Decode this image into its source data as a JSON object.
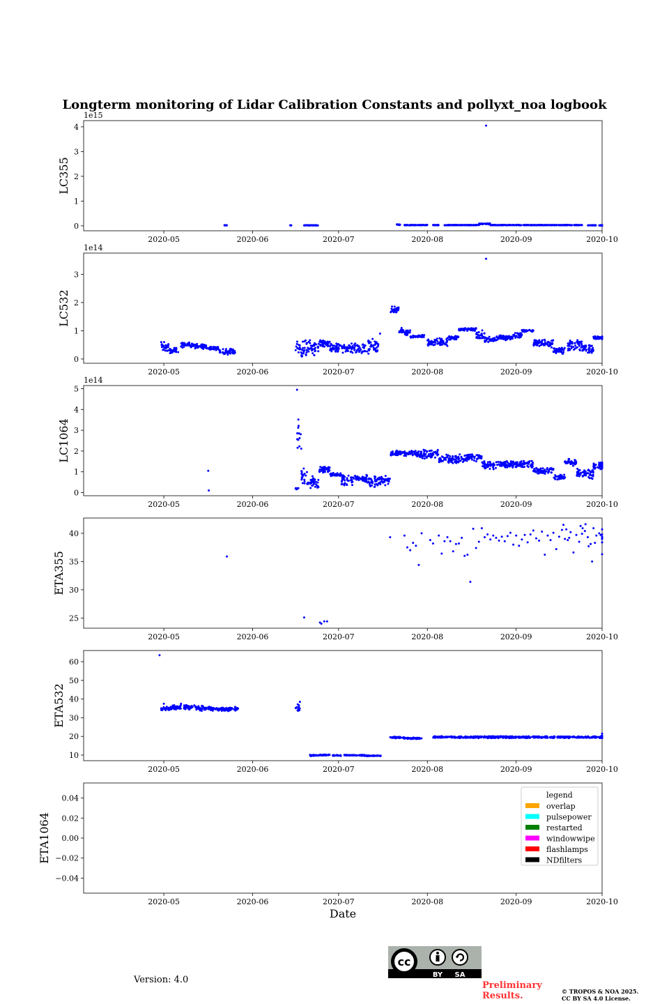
{
  "title": "Longterm monitoring of Lidar Calibration Constants and pollyxt_noa logbook",
  "x_axis": {
    "label": "Date",
    "ticks": [
      "2020-05",
      "2020-06",
      "2020-07",
      "2020-08",
      "2020-09",
      "2020-10"
    ],
    "tick_days": [
      30,
      61,
      91,
      122,
      153,
      183
    ],
    "range_days": [
      2,
      183
    ]
  },
  "version_text": "Version: 4.0",
  "preliminary_text": [
    "Preliminary",
    "Results."
  ],
  "copyright_text": [
    "© TROPOS & NOA 2025.",
    "CC BY SA 4.0 License."
  ],
  "cc_badge": {
    "labels": [
      "cc",
      "BY",
      "SA"
    ]
  },
  "colors": {
    "points": "#0000ff"
  },
  "chart_data": [
    {
      "type": "scatter",
      "ylabel": "LC355",
      "exponent": "1e15",
      "ylim": [
        -0.2,
        4.25
      ],
      "yticks": [
        0,
        1,
        2,
        3,
        4
      ],
      "ytick_labels": [
        "0",
        "1",
        "2",
        "3",
        "4"
      ],
      "segments": [
        [
          51,
          52,
          0.02,
          0.01
        ],
        [
          74,
          74.5,
          0.02,
          0.01
        ],
        [
          79,
          84,
          0.02,
          0.01
        ],
        [
          111,
          112.5,
          0.05,
          0.02
        ],
        [
          114,
          122,
          0.03,
          0.01
        ],
        [
          124,
          126,
          0.03,
          0.01
        ],
        [
          128,
          140,
          0.03,
          0.01
        ],
        [
          140,
          144,
          0.08,
          0.02
        ],
        [
          144,
          176,
          0.03,
          0.01
        ],
        [
          178,
          181,
          0.02,
          0.01
        ],
        [
          182,
          186,
          0.02,
          0.01
        ]
      ],
      "outliers": [
        [
          142.5,
          4.05
        ]
      ]
    },
    {
      "type": "scatter",
      "ylabel": "LC532",
      "exponent": "1e14",
      "ylim": [
        -0.15,
        3.75
      ],
      "yticks": [
        0,
        1,
        2,
        3
      ],
      "ytick_labels": [
        "0",
        "1",
        "2",
        "3"
      ],
      "segments": [
        [
          29,
          32,
          0.45,
          0.2
        ],
        [
          32,
          35,
          0.3,
          0.12
        ],
        [
          36,
          39,
          0.5,
          0.1
        ],
        [
          39,
          45,
          0.45,
          0.1
        ],
        [
          45,
          49,
          0.38,
          0.08
        ],
        [
          49,
          55,
          0.25,
          0.12
        ],
        [
          76,
          80,
          0.35,
          0.35
        ],
        [
          80,
          84,
          0.4,
          0.3
        ],
        [
          84,
          88,
          0.55,
          0.15
        ],
        [
          88,
          101,
          0.38,
          0.2
        ],
        [
          101,
          105,
          0.45,
          0.3
        ],
        [
          109,
          112,
          1.75,
          0.12
        ],
        [
          112,
          116,
          0.95,
          0.12
        ],
        [
          116,
          121,
          0.8,
          0.06
        ],
        [
          122,
          129,
          0.6,
          0.15
        ],
        [
          129,
          133,
          0.75,
          0.08
        ],
        [
          133,
          139,
          1.05,
          0.06
        ],
        [
          139,
          142,
          0.85,
          0.2
        ],
        [
          142,
          146,
          0.7,
          0.12
        ],
        [
          146,
          152,
          0.75,
          0.1
        ],
        [
          152,
          155,
          0.85,
          0.12
        ],
        [
          155,
          159,
          1.0,
          0.05
        ],
        [
          159,
          166,
          0.55,
          0.15
        ],
        [
          166,
          170,
          0.3,
          0.15
        ],
        [
          171,
          176,
          0.5,
          0.25
        ],
        [
          176,
          180,
          0.35,
          0.2
        ],
        [
          180,
          186,
          0.75,
          0.06
        ]
      ],
      "outliers": [
        [
          142.5,
          3.55
        ],
        [
          113,
          1.1
        ],
        [
          105.5,
          0.9
        ]
      ]
    },
    {
      "type": "scatter",
      "ylabel": "LC1064",
      "exponent": "1e14",
      "ylim": [
        -0.15,
        5.15
      ],
      "yticks": [
        0,
        1,
        2,
        3,
        4,
        5
      ],
      "ytick_labels": [
        "0",
        "1",
        "2",
        "3",
        "4",
        "5"
      ],
      "segments": [
        [
          76,
          77,
          0.2,
          0.05
        ],
        [
          76.5,
          78,
          2.8,
          1.1
        ],
        [
          78,
          80,
          0.8,
          0.5
        ],
        [
          80,
          84,
          0.5,
          0.35
        ],
        [
          84,
          88,
          1.1,
          0.15
        ],
        [
          88,
          92,
          0.85,
          0.1
        ],
        [
          92,
          96,
          0.6,
          0.3
        ],
        [
          96,
          101,
          0.7,
          0.2
        ],
        [
          101,
          105,
          0.5,
          0.3
        ],
        [
          105,
          109,
          0.6,
          0.25
        ],
        [
          109,
          118,
          1.9,
          0.15
        ],
        [
          118,
          126,
          1.85,
          0.25
        ],
        [
          126,
          135,
          1.6,
          0.25
        ],
        [
          135,
          141,
          1.7,
          0.2
        ],
        [
          141,
          146,
          1.3,
          0.25
        ],
        [
          146,
          159,
          1.35,
          0.2
        ],
        [
          159,
          166,
          1.05,
          0.15
        ],
        [
          166,
          170,
          0.75,
          0.15
        ],
        [
          170,
          174,
          1.45,
          0.2
        ],
        [
          174,
          180,
          0.9,
          0.25
        ],
        [
          180,
          186,
          1.3,
          0.2
        ]
      ],
      "outliers": [
        [
          45.5,
          1.05
        ],
        [
          45.7,
          0.1
        ],
        [
          76.5,
          4.95
        ]
      ]
    },
    {
      "type": "scatter",
      "ylabel": "ETA355",
      "exponent": "",
      "ylim": [
        23.2,
        42.7
      ],
      "yticks": [
        25,
        30,
        35,
        40
      ],
      "ytick_labels": [
        "25",
        "30",
        "35",
        "40"
      ],
      "outliers": [
        [
          52,
          35.9
        ],
        [
          79,
          25.1
        ],
        [
          84.5,
          24.2
        ],
        [
          85,
          24.0
        ],
        [
          86,
          24.4
        ],
        [
          87,
          24.4
        ],
        [
          109,
          39.3
        ],
        [
          114,
          39.6
        ],
        [
          115,
          37.5
        ],
        [
          116,
          37.0
        ],
        [
          117,
          38.3
        ],
        [
          118,
          37.8
        ],
        [
          119,
          34.4
        ],
        [
          120,
          40.0
        ],
        [
          123,
          38.8
        ],
        [
          124,
          38.2
        ],
        [
          126,
          39.6
        ],
        [
          127,
          36.4
        ],
        [
          128,
          38.6
        ],
        [
          129,
          39.3
        ],
        [
          130,
          38.6
        ],
        [
          131,
          36.8
        ],
        [
          132,
          38.1
        ],
        [
          133,
          38.2
        ],
        [
          134,
          39.2
        ],
        [
          135,
          36.0
        ],
        [
          136,
          36.2
        ],
        [
          137,
          31.4
        ],
        [
          138,
          40.8
        ],
        [
          139,
          37.4
        ],
        [
          140,
          38.5
        ],
        [
          141,
          40.9
        ],
        [
          142,
          39.3
        ],
        [
          143,
          39.8
        ],
        [
          144,
          38.9
        ],
        [
          145,
          39.6
        ],
        [
          146,
          39.2
        ],
        [
          147,
          38.7
        ],
        [
          148,
          39.4
        ],
        [
          149,
          38.6
        ],
        [
          150,
          39.5
        ],
        [
          151,
          40.1
        ],
        [
          152,
          38.0
        ],
        [
          153,
          39.6
        ],
        [
          154,
          37.8
        ],
        [
          155,
          38.9
        ],
        [
          156,
          39.7
        ],
        [
          157,
          38.4
        ],
        [
          158,
          39.8
        ],
        [
          159,
          40.5
        ],
        [
          160,
          39.1
        ],
        [
          161,
          38.7
        ],
        [
          162,
          40.3
        ],
        [
          163,
          36.2
        ],
        [
          164,
          39.6
        ],
        [
          165,
          38.8
        ],
        [
          166,
          40.1
        ],
        [
          167,
          37.2
        ],
        [
          168,
          39.4
        ],
        [
          169,
          40.6
        ],
        [
          170,
          39.0
        ],
        [
          171,
          38.8
        ],
        [
          172,
          40.2
        ],
        [
          173,
          36.6
        ],
        [
          174,
          39.7
        ],
        [
          175,
          38.5
        ],
        [
          176,
          39.9
        ],
        [
          177,
          40.4
        ],
        [
          178,
          39.3
        ],
        [
          179,
          38.1
        ],
        [
          180,
          40.9
        ],
        [
          181,
          39.6
        ],
        [
          182,
          40.0
        ],
        [
          183,
          39.1
        ],
        [
          184,
          38.4
        ],
        [
          185,
          40.7
        ],
        [
          186,
          39.3
        ],
        [
          175.5,
          41.3
        ],
        [
          176.2,
          40.9
        ],
        [
          177.2,
          41.6
        ],
        [
          178.3,
          37.7
        ],
        [
          179.5,
          35.0
        ],
        [
          169.5,
          41.5
        ],
        [
          170.5,
          40.7
        ],
        [
          171.5,
          39.2
        ],
        [
          180.5,
          38.3
        ],
        [
          182.5,
          39.7
        ],
        [
          184.5,
          38.4
        ],
        [
          185.5,
          39.4
        ],
        [
          186.5,
          36.3
        ],
        [
          187,
          39.0
        ],
        [
          187.5,
          39.8
        ]
      ]
    },
    {
      "type": "scatter",
      "ylabel": "ETA532",
      "exponent": "",
      "ylim": [
        7,
        66
      ],
      "yticks": [
        10,
        20,
        30,
        40,
        50,
        60
      ],
      "ytick_labels": [
        "10",
        "20",
        "30",
        "40",
        "50",
        "60"
      ],
      "segments": [
        [
          29,
          32,
          35.0,
          1.5
        ],
        [
          32,
          36,
          35.5,
          1.5
        ],
        [
          37,
          42,
          35.5,
          1.5
        ],
        [
          42,
          47,
          35.0,
          1.5
        ],
        [
          47,
          53,
          34.5,
          1.2
        ],
        [
          53,
          56,
          34.8,
          1.2
        ],
        [
          76,
          77.5,
          35.5,
          2.0
        ],
        [
          81,
          84,
          9.8,
          0.4
        ],
        [
          84,
          88,
          10.0,
          0.4
        ],
        [
          89,
          92,
          9.8,
          0.3
        ],
        [
          93,
          100,
          9.9,
          0.3
        ],
        [
          100,
          106,
          9.6,
          0.3
        ],
        [
          109,
          114,
          19.4,
          0.5
        ],
        [
          114,
          120,
          19.0,
          0.5
        ],
        [
          124,
          186,
          19.6,
          0.6
        ]
      ],
      "outliers": [
        [
          28.5,
          63.5
        ],
        [
          30,
          37.5
        ],
        [
          36,
          37.5
        ],
        [
          77.5,
          38.5
        ],
        [
          185.5,
          21.5
        ],
        [
          187,
          20.5
        ]
      ]
    },
    {
      "type": "scatter",
      "ylabel": "ETA1064",
      "exponent": "",
      "ylim": [
        -0.055,
        0.055
      ],
      "yticks": [
        -0.04,
        -0.02,
        0.0,
        0.02,
        0.04
      ],
      "ytick_labels": [
        "−0.04",
        "−0.02",
        "0.00",
        "0.02",
        "0.04"
      ],
      "legend": {
        "title": "legend",
        "items": [
          {
            "label": "overlap",
            "color": "#ffa500"
          },
          {
            "label": "pulsepower",
            "color": "#00ffff"
          },
          {
            "label": "restarted",
            "color": "#008000"
          },
          {
            "label": "windowwipe",
            "color": "#ff00ff"
          },
          {
            "label": "flashlamps",
            "color": "#ff0000"
          },
          {
            "label": "NDfilters",
            "color": "#000000"
          }
        ]
      }
    }
  ]
}
